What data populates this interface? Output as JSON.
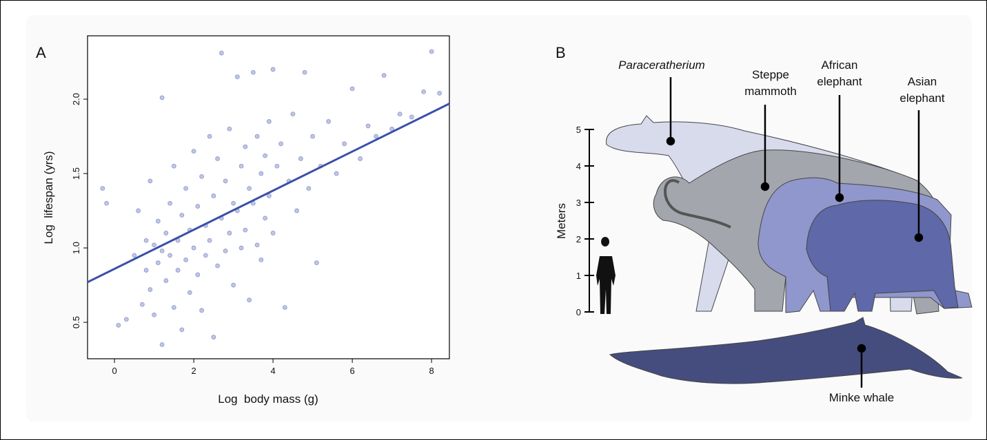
{
  "chart_data": {
    "type": "scatter",
    "panel_label": "A",
    "x_label": "Log  body mass (g)",
    "y_label": "Log  lifespan (yrs)",
    "xlim": [
      -0.68,
      8.45
    ],
    "ylim": [
      0.255,
      2.426
    ],
    "xticks": [
      0,
      2,
      4,
      6,
      8
    ],
    "yticks": [
      0.5,
      {
        "value": 1,
        "label": "1.0"
      },
      1.5,
      {
        "value": 2,
        "label": "2.0"
      }
    ],
    "color": "#4a5cb0",
    "x": [
      -0.3,
      -0.2,
      0.1,
      0.3,
      0.5,
      0.6,
      0.7,
      0.8,
      0.8,
      0.9,
      0.9,
      1.0,
      1.0,
      1.1,
      1.1,
      1.2,
      1.2,
      1.2,
      1.3,
      1.3,
      1.4,
      1.4,
      1.5,
      1.5,
      1.6,
      1.6,
      1.7,
      1.7,
      1.8,
      1.8,
      1.9,
      1.9,
      2.0,
      2.0,
      2.1,
      2.1,
      2.2,
      2.2,
      2.3,
      2.3,
      2.4,
      2.4,
      2.5,
      2.5,
      2.6,
      2.6,
      2.7,
      2.7,
      2.8,
      2.8,
      2.9,
      2.9,
      3.0,
      3.0,
      3.1,
      3.1,
      3.2,
      3.2,
      3.3,
      3.3,
      3.4,
      3.4,
      3.5,
      3.5,
      3.6,
      3.6,
      3.7,
      3.7,
      3.8,
      3.8,
      3.9,
      3.9,
      4.0,
      4.0,
      4.1,
      4.2,
      4.3,
      4.4,
      4.5,
      4.6,
      4.7,
      4.8,
      4.9,
      5.0,
      5.1,
      5.2,
      5.4,
      5.6,
      5.8,
      6.0,
      6.2,
      6.4,
      6.6,
      6.8,
      7.0,
      7.2,
      7.5,
      7.8,
      8.0,
      8.2
    ],
    "values": [
      1.4,
      1.3,
      0.48,
      0.52,
      0.95,
      1.25,
      0.62,
      1.05,
      0.85,
      1.45,
      0.72,
      1.02,
      0.55,
      1.18,
      0.9,
      2.01,
      0.98,
      0.35,
      1.1,
      0.78,
      1.3,
      0.95,
      1.55,
      0.6,
      1.05,
      0.85,
      1.22,
      0.45,
      1.4,
      0.92,
      1.12,
      0.7,
      1.65,
      1.0,
      1.28,
      0.82,
      1.48,
      0.58,
      1.15,
      0.95,
      1.75,
      1.05,
      1.35,
      0.4,
      1.6,
      0.88,
      2.31,
      1.2,
      1.45,
      0.98,
      1.8,
      1.1,
      1.3,
      0.75,
      2.15,
      1.25,
      1.55,
      1.0,
      1.68,
      1.12,
      1.4,
      0.65,
      2.18,
      1.3,
      1.75,
      1.02,
      1.5,
      0.92,
      1.62,
      1.2,
      1.85,
      1.35,
      2.2,
      1.1,
      1.55,
      1.7,
      0.6,
      1.45,
      1.9,
      1.25,
      1.6,
      2.18,
      1.4,
      1.75,
      0.9,
      1.55,
      1.85,
      1.5,
      1.7,
      2.07,
      1.6,
      1.82,
      1.75,
      2.16,
      1.8,
      1.9,
      1.88,
      2.05,
      2.32,
      2.04
    ],
    "fit": {
      "color": "#3a50a8",
      "x": [
        -0.68,
        8.45
      ],
      "y": [
        0.77,
        1.97
      ]
    }
  },
  "figure_b": {
    "panel_label": "B",
    "y_label": "Meters",
    "ylim": [
      0,
      5
    ],
    "yticks": [
      0,
      1,
      2,
      3,
      4,
      5
    ],
    "animals": [
      {
        "lines": [
          "Paraceratherium"
        ]
      },
      {
        "lines": [
          "Steppe",
          "mammoth"
        ]
      },
      {
        "lines": [
          "African",
          "elephant"
        ]
      },
      {
        "lines": [
          "Asian",
          "elephant"
        ]
      },
      {
        "lines": [
          "Minke whale"
        ]
      }
    ]
  }
}
